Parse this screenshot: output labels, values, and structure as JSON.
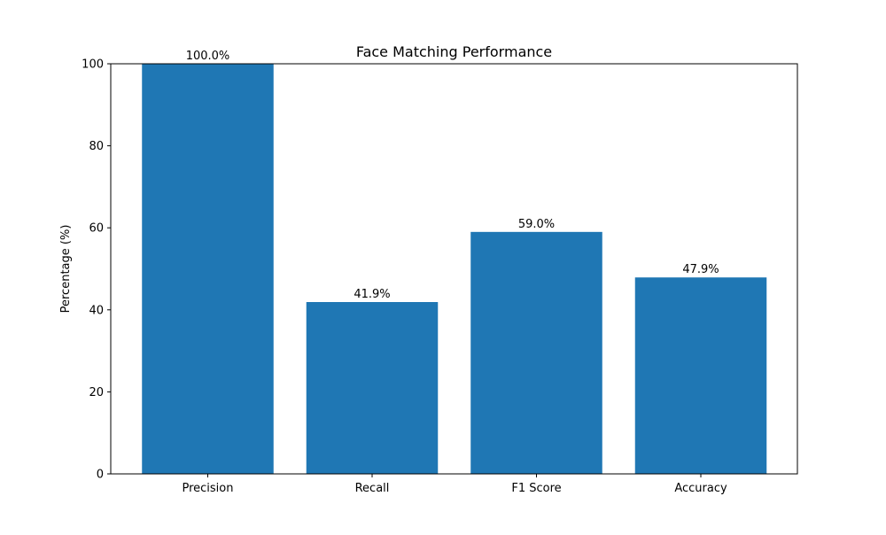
{
  "chart_data": {
    "type": "bar",
    "title": "Face Matching Performance",
    "xlabel": "",
    "ylabel": "Percentage (%)",
    "categories": [
      "Precision",
      "Recall",
      "F1 Score",
      "Accuracy"
    ],
    "values": [
      100.0,
      41.9,
      59.0,
      47.9
    ],
    "data_labels": [
      "100.0%",
      "41.9%",
      "59.0%",
      "47.9%"
    ],
    "ylim": [
      0,
      100
    ],
    "yticks": [
      0,
      20,
      40,
      60,
      80,
      100
    ],
    "ytick_labels": [
      "0",
      "20",
      "40",
      "60",
      "80",
      "100"
    ],
    "grid": false,
    "legend": "none",
    "bar_color": "#1f77b4"
  }
}
